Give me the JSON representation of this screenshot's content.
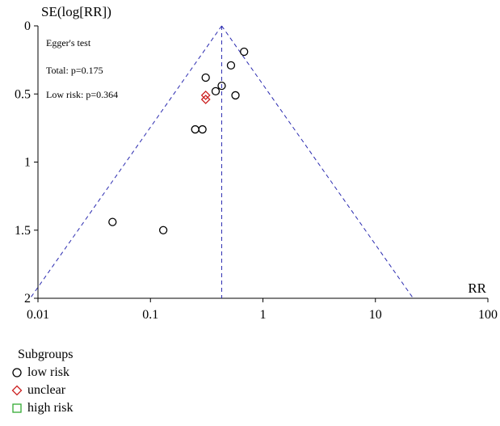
{
  "chart_data": {
    "type": "scatter",
    "subtype": "funnel-plot",
    "xlabel": "RR",
    "ylabel": "SE(log[RR])",
    "x_scale": "log",
    "xlim": [
      0.01,
      100
    ],
    "ylim": [
      2,
      0
    ],
    "y_inverted": true,
    "x_ticks": [
      "0.01",
      "0.1",
      "1",
      "10",
      "100"
    ],
    "y_ticks": [
      "0",
      "0.5",
      "1",
      "1.5",
      "2"
    ],
    "pooled_rr": 0.43,
    "funnel_lines": "dashed",
    "grid": false,
    "annotations": [
      "Egger's test",
      "Total: p=0.175",
      "Low risk: p=0.364"
    ],
    "legend": {
      "title": "Subgroups",
      "placement": "bottom-left",
      "entries": [
        {
          "name": "low risk",
          "marker": "circle",
          "color": "#000000"
        },
        {
          "name": "unclear",
          "marker": "diamond",
          "color": "#cc2222"
        },
        {
          "name": "high risk",
          "marker": "square",
          "color": "#33aa33"
        }
      ]
    },
    "series": [
      {
        "name": "low risk",
        "points": [
          {
            "x": 0.68,
            "y": 0.19
          },
          {
            "x": 0.52,
            "y": 0.29
          },
          {
            "x": 0.31,
            "y": 0.38
          },
          {
            "x": 0.43,
            "y": 0.44
          },
          {
            "x": 0.38,
            "y": 0.48
          },
          {
            "x": 0.57,
            "y": 0.51
          },
          {
            "x": 0.25,
            "y": 0.76
          },
          {
            "x": 0.29,
            "y": 0.76
          },
          {
            "x": 0.046,
            "y": 1.44
          },
          {
            "x": 0.13,
            "y": 1.5
          }
        ]
      },
      {
        "name": "unclear",
        "points": [
          {
            "x": 0.31,
            "y": 0.51
          },
          {
            "x": 0.31,
            "y": 0.54
          }
        ]
      },
      {
        "name": "high risk",
        "points": []
      }
    ]
  }
}
